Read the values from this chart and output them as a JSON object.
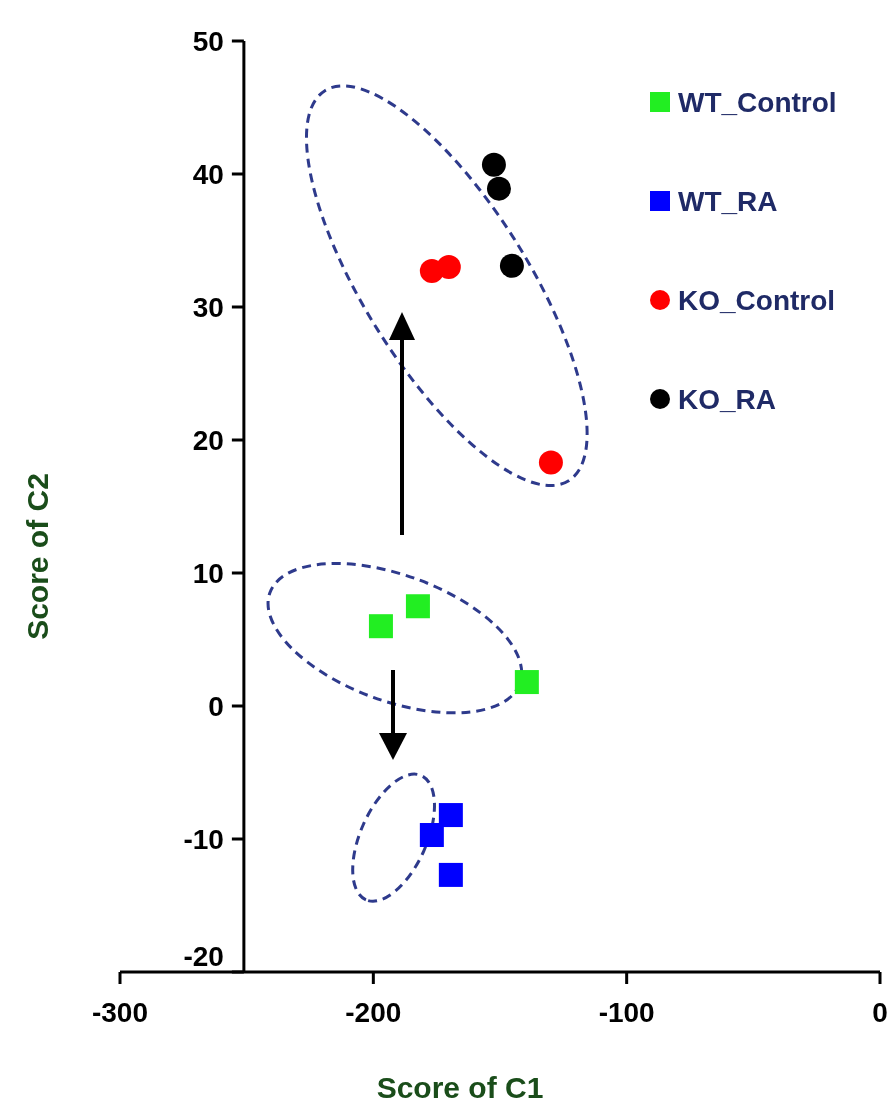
{
  "chart_data": {
    "type": "scatter",
    "xlabel": "Score of C1",
    "ylabel": "Score of C2",
    "xlim": [
      -300,
      0
    ],
    "xticks": [
      -300,
      -200,
      -100,
      0
    ],
    "ylim": [
      -20,
      50
    ],
    "yticks": [
      -20,
      -10,
      0,
      10,
      20,
      30,
      40,
      50
    ],
    "grid": false,
    "legend": "top right",
    "series": [
      {
        "name": "WT_Control",
        "color": "#22ee22",
        "marker": "square",
        "x": [
          -197,
          -182.4,
          -139.4
        ],
        "values": [
          6.0,
          7.5,
          1.8
        ]
      },
      {
        "name": "WT_RA",
        "color": "#0000ff",
        "marker": "square",
        "x": [
          -176.9,
          -169.4,
          -169.4
        ],
        "values": [
          -9.7,
          -8.2,
          -12.7
        ]
      },
      {
        "name": "KO_Control",
        "color": "#ff0000",
        "marker": "circle",
        "x": [
          -176.9,
          -170.2,
          -129.9
        ],
        "values": [
          32.7,
          33.0,
          18.3
        ]
      },
      {
        "name": "KO_RA",
        "color": "#000000",
        "marker": "circle",
        "x": [
          -152.4,
          -150.4,
          -145.3
        ],
        "values": [
          40.7,
          38.9,
          33.1
        ]
      }
    ]
  }
}
